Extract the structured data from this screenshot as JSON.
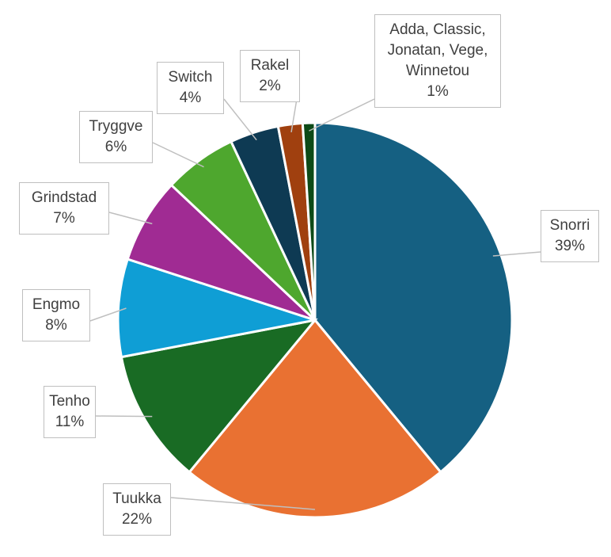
{
  "chart_data": {
    "type": "pie",
    "title": "",
    "start_angle": "12 o'clock, clockwise",
    "slices": [
      {
        "name": "Snorri",
        "value": 39,
        "label": "39%",
        "color": "#156082"
      },
      {
        "name": "Tuukka",
        "value": 22,
        "label": "22%",
        "color": "#E97132"
      },
      {
        "name": "Tenho",
        "value": 11,
        "label": "11%",
        "color": "#196B24"
      },
      {
        "name": "Engmo",
        "value": 8,
        "label": "8%",
        "color": "#0F9ED5"
      },
      {
        "name": "Grindstad",
        "value": 7,
        "label": "7%",
        "color": "#A02B93"
      },
      {
        "name": "Tryggve",
        "value": 6,
        "label": "6%",
        "color": "#4EA72E"
      },
      {
        "name": "Switch",
        "value": 4,
        "label": "4%",
        "color": "#0E3A53"
      },
      {
        "name": "Rakel",
        "value": 2,
        "label": "2%",
        "color": "#A0400F"
      },
      {
        "name": "Adda, Classic, Jonatan, Vege, Winnetou",
        "value": 1,
        "label": "1%",
        "color": "#0D4A17"
      }
    ]
  }
}
